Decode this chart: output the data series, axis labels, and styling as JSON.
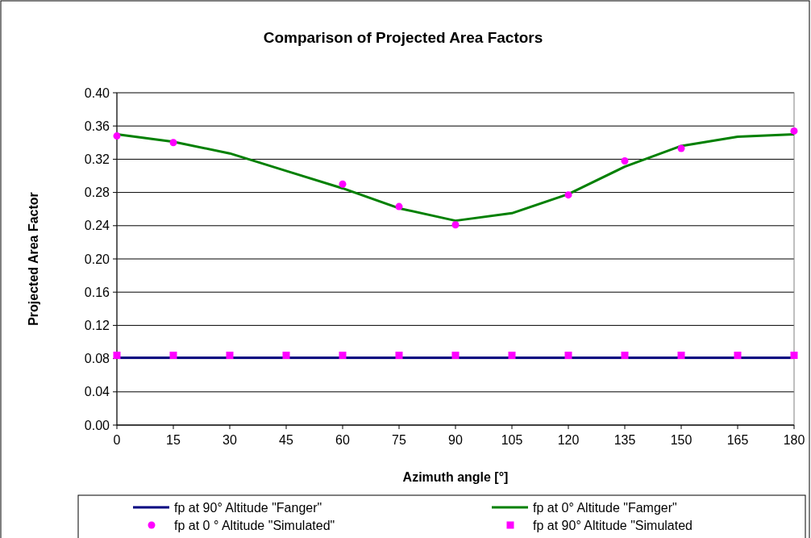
{
  "chart_data": {
    "type": "line",
    "title": "Comparison of Projected Area Factors",
    "xlabel": "Azimuth angle [°]",
    "ylabel": "Projected Area Factor",
    "x": [
      0,
      15,
      30,
      45,
      60,
      75,
      90,
      105,
      120,
      135,
      150,
      165,
      180
    ],
    "xlim": [
      0,
      180
    ],
    "xticks": [
      0,
      15,
      30,
      45,
      60,
      75,
      90,
      105,
      120,
      135,
      150,
      165,
      180
    ],
    "ylim": [
      0,
      0.4
    ],
    "yticks": [
      {
        "value": 0,
        "label": "0.00"
      },
      {
        "value": 0.04,
        "label": "0.04"
      },
      {
        "value": 0.08,
        "label": "0.08"
      },
      {
        "value": 0.12,
        "label": "0.12"
      },
      {
        "value": 0.16,
        "label": "0.16"
      },
      {
        "value": 0.2,
        "label": "0.20"
      },
      {
        "value": 0.24,
        "label": "0.24"
      },
      {
        "value": 0.28,
        "label": "0.28"
      },
      {
        "value": 0.32,
        "label": "0.32"
      },
      {
        "value": 0.36,
        "label": "0.36"
      },
      {
        "value": 0.4,
        "label": "0.40"
      }
    ],
    "grid": "y",
    "legend": "bottom",
    "series": [
      {
        "name": "fp at 90° Altitude \"Fanger\"",
        "color": "#000080",
        "marker": "none",
        "values": [
          0.081,
          0.081,
          0.081,
          0.081,
          0.081,
          0.081,
          0.081,
          0.081,
          0.081,
          0.081,
          0.081,
          0.081,
          0.081
        ]
      },
      {
        "name": "fp at 0° Altitude \"Famger\"",
        "color": "#008000",
        "marker": "none",
        "values": [
          0.35,
          0.341,
          0.327,
          0.306,
          0.285,
          0.261,
          0.246,
          0.255,
          0.278,
          0.311,
          0.336,
          0.347,
          0.35
        ]
      },
      {
        "name": "fp at 0 ° Altitude \"Simulated\"",
        "type": "scatter",
        "color": "#ff00ff",
        "marker": "circle",
        "x": [
          0,
          15,
          60,
          75,
          90,
          120,
          135,
          150,
          180
        ],
        "values": [
          0.348,
          0.34,
          0.29,
          0.263,
          0.241,
          0.277,
          0.318,
          0.333,
          0.354
        ]
      },
      {
        "name": "fp at 90° Altitude \"Simulated",
        "type": "scatter",
        "color": "#ff00ff",
        "marker": "square",
        "values": [
          0.084,
          0.084,
          0.084,
          0.084,
          0.084,
          0.084,
          0.084,
          0.084,
          0.084,
          0.084,
          0.084,
          0.084,
          0.084
        ]
      }
    ]
  }
}
